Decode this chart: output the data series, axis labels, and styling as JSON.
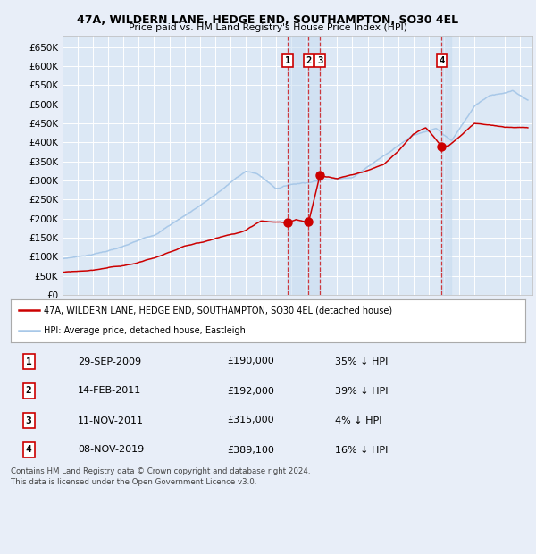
{
  "title": "47A, WILDERN LANE, HEDGE END, SOUTHAMPTON, SO30 4EL",
  "subtitle": "Price paid vs. HM Land Registry's House Price Index (HPI)",
  "ylim": [
    0,
    680000
  ],
  "xlim_start": 1995.0,
  "xlim_end": 2025.8,
  "yticks": [
    0,
    50000,
    100000,
    150000,
    200000,
    250000,
    300000,
    350000,
    400000,
    450000,
    500000,
    550000,
    600000,
    650000
  ],
  "ytick_labels": [
    "£0",
    "£50K",
    "£100K",
    "£150K",
    "£200K",
    "£250K",
    "£300K",
    "£350K",
    "£400K",
    "£450K",
    "£500K",
    "£550K",
    "£600K",
    "£650K"
  ],
  "sale_years": [
    2009.748,
    2011.121,
    2011.863,
    2019.855
  ],
  "sale_prices": [
    190000,
    192000,
    315000,
    389100
  ],
  "sale_labels": [
    "1",
    "2",
    "3",
    "4"
  ],
  "sale_display_dates": [
    "29-SEP-2009",
    "14-FEB-2011",
    "11-NOV-2011",
    "08-NOV-2019"
  ],
  "sale_price_strs": [
    "£190,000",
    "£192,000",
    "£315,000",
    "£389,100"
  ],
  "sale_hpi_pcts": [
    "35% ↓ HPI",
    "39% ↓ HPI",
    "4% ↓ HPI",
    "16% ↓ HPI"
  ],
  "hpi_color": "#a8c8e8",
  "price_color": "#cc0000",
  "bg_color": "#e8eef8",
  "plot_bg": "#dce8f5",
  "grid_color": "#ffffff",
  "legend_label_price": "47A, WILDERN LANE, HEDGE END, SOUTHAMPTON, SO30 4EL (detached house)",
  "legend_label_hpi": "HPI: Average price, detached house, Eastleigh",
  "footer1": "Contains HM Land Registry data © Crown copyright and database right 2024.",
  "footer2": "This data is licensed under the Open Government Licence v3.0."
}
